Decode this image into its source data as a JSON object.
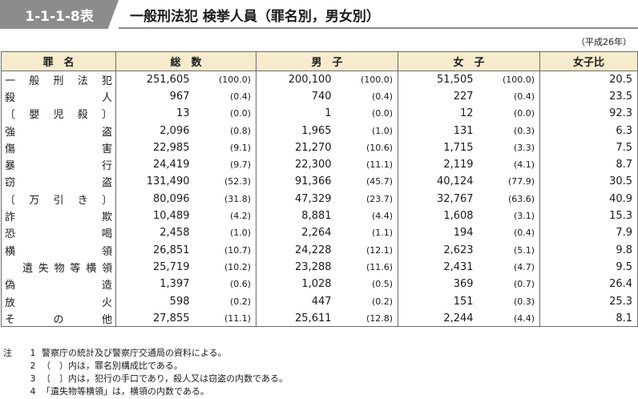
{
  "header": {
    "badge": "1-1-1-8表",
    "title": "一般刑法犯 検挙人員（罪名別，男女別）"
  },
  "era_note": "（平成26年）",
  "columns": [
    "罪　名",
    "総　数",
    "男　子",
    "女　子",
    "女子比"
  ],
  "rows": [
    {
      "name": "一般刑法犯",
      "total": "251,605",
      "total_pct": "(100.0)",
      "male": "200,100",
      "male_pct": "(100.0)",
      "female": "51,505",
      "female_pct": "(100.0)",
      "ratio": "20.5"
    },
    {
      "name": "殺人",
      "total": "967",
      "total_pct": "(0.4)",
      "male": "740",
      "male_pct": "(0.4)",
      "female": "227",
      "female_pct": "(0.4)",
      "ratio": "23.5"
    },
    {
      "name": "〔嬰児殺〕",
      "total": "13",
      "total_pct": "(0.0)",
      "male": "1",
      "male_pct": "(0.0)",
      "female": "12",
      "female_pct": "(0.0)",
      "ratio": "92.3"
    },
    {
      "name": "強盗",
      "total": "2,096",
      "total_pct": "(0.8)",
      "male": "1,965",
      "male_pct": "(1.0)",
      "female": "131",
      "female_pct": "(0.3)",
      "ratio": "6.3"
    },
    {
      "name": "傷害",
      "total": "22,985",
      "total_pct": "(9.1)",
      "male": "21,270",
      "male_pct": "(10.6)",
      "female": "1,715",
      "female_pct": "(3.3)",
      "ratio": "7.5"
    },
    {
      "name": "暴行",
      "total": "24,419",
      "total_pct": "(9.7)",
      "male": "22,300",
      "male_pct": "(11.1)",
      "female": "2,119",
      "female_pct": "(4.1)",
      "ratio": "8.7"
    },
    {
      "name": "窃盗",
      "total": "131,490",
      "total_pct": "(52.3)",
      "male": "91,366",
      "male_pct": "(45.7)",
      "female": "40,124",
      "female_pct": "(77.9)",
      "ratio": "30.5"
    },
    {
      "name": "〔万引き〕",
      "total": "80,096",
      "total_pct": "(31.8)",
      "male": "47,329",
      "male_pct": "(23.7)",
      "female": "32,767",
      "female_pct": "(63.6)",
      "ratio": "40.9"
    },
    {
      "name": "詐欺",
      "total": "10,489",
      "total_pct": "(4.2)",
      "male": "8,881",
      "male_pct": "(4.4)",
      "female": "1,608",
      "female_pct": "(3.1)",
      "ratio": "15.3"
    },
    {
      "name": "恐喝",
      "total": "2,458",
      "total_pct": "(1.0)",
      "male": "2,264",
      "male_pct": "(1.1)",
      "female": "194",
      "female_pct": "(0.4)",
      "ratio": "7.9"
    },
    {
      "name": "横領",
      "total": "26,851",
      "total_pct": "(10.7)",
      "male": "24,228",
      "male_pct": "(12.1)",
      "female": "2,623",
      "female_pct": "(5.1)",
      "ratio": "9.8"
    },
    {
      "name": "遺失物等横領",
      "total": "25,719",
      "total_pct": "(10.2)",
      "male": "23,288",
      "male_pct": "(11.6)",
      "female": "2,431",
      "female_pct": "(4.7)",
      "ratio": "9.5"
    },
    {
      "name": "偽造",
      "total": "1,397",
      "total_pct": "(0.6)",
      "male": "1,028",
      "male_pct": "(0.5)",
      "female": "369",
      "female_pct": "(0.7)",
      "ratio": "26.4"
    },
    {
      "name": "放火",
      "total": "598",
      "total_pct": "(0.2)",
      "male": "447",
      "male_pct": "(0.2)",
      "female": "151",
      "female_pct": "(0.3)",
      "ratio": "25.3"
    },
    {
      "name": "その他",
      "total": "27,855",
      "total_pct": "(11.1)",
      "male": "25,611",
      "male_pct": "(12.8)",
      "female": "2,244",
      "female_pct": "(4.4)",
      "ratio": "8.1"
    }
  ],
  "notes": {
    "label": "注",
    "items": [
      {
        "no": "1",
        "text": "警察庁の統計及び警察庁交通局の資料による。"
      },
      {
        "no": "2",
        "text": "（　）内は，罪名別構成比である。"
      },
      {
        "no": "3",
        "text": "〔　〕内は，犯行の手口であり，殺人又は窃盗の内数である。"
      },
      {
        "no": "4",
        "text": "「遺失物等横領」は，横領の内数である。"
      }
    ]
  }
}
